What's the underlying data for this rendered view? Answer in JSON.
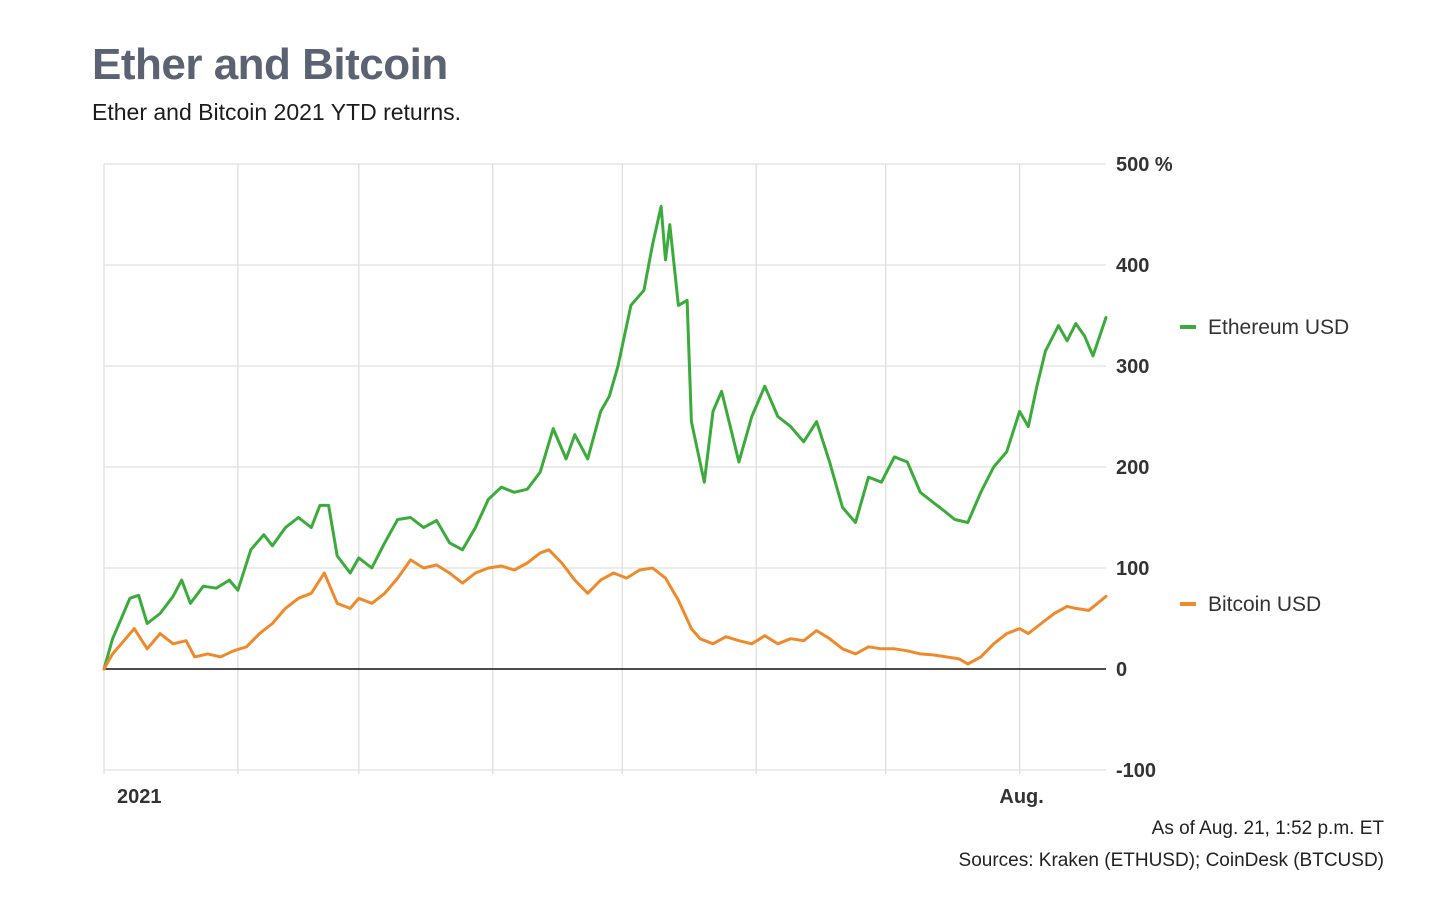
{
  "header": {
    "title": "Ether and Bitcoin",
    "subtitle": "Ether and Bitcoin 2021 YTD returns."
  },
  "footer": {
    "as_of": "As of Aug. 21, 1:52 p.m. ET",
    "sources": "Sources: Kraken (ETHUSD); CoinDesk (BTCUSD)"
  },
  "chart_data": {
    "type": "line",
    "ylim": [
      -100,
      500
    ],
    "yticks": [
      500,
      400,
      300,
      200,
      100,
      0,
      -100
    ],
    "ytick_labels": [
      "500 %",
      "400",
      "300",
      "200",
      "100",
      "0",
      "-100"
    ],
    "xlim": [
      "2021-01-01",
      "2021-08-21"
    ],
    "xtick_labels": [
      {
        "date": "2021-01-01",
        "label": "2021"
      },
      {
        "date": "2021-08-01",
        "label": "Aug."
      }
    ],
    "grid": true,
    "legend_placement": "right, next to each series",
    "series": [
      {
        "name": "Ethereum USD",
        "color": "#3bab3b",
        "points": [
          [
            "2021-01-01",
            0
          ],
          [
            "2021-01-03",
            30
          ],
          [
            "2021-01-05",
            50
          ],
          [
            "2021-01-07",
            70
          ],
          [
            "2021-01-09",
            73
          ],
          [
            "2021-01-11",
            45
          ],
          [
            "2021-01-14",
            55
          ],
          [
            "2021-01-17",
            72
          ],
          [
            "2021-01-19",
            88
          ],
          [
            "2021-01-21",
            65
          ],
          [
            "2021-01-24",
            82
          ],
          [
            "2021-01-27",
            80
          ],
          [
            "2021-01-30",
            88
          ],
          [
            "2021-02-01",
            78
          ],
          [
            "2021-02-04",
            118
          ],
          [
            "2021-02-07",
            133
          ],
          [
            "2021-02-09",
            122
          ],
          [
            "2021-02-12",
            140
          ],
          [
            "2021-02-15",
            150
          ],
          [
            "2021-02-18",
            140
          ],
          [
            "2021-02-20",
            162
          ],
          [
            "2021-02-22",
            162
          ],
          [
            "2021-02-24",
            112
          ],
          [
            "2021-02-27",
            95
          ],
          [
            "2021-03-01",
            110
          ],
          [
            "2021-03-04",
            100
          ],
          [
            "2021-03-07",
            125
          ],
          [
            "2021-03-10",
            148
          ],
          [
            "2021-03-13",
            150
          ],
          [
            "2021-03-16",
            140
          ],
          [
            "2021-03-19",
            147
          ],
          [
            "2021-03-22",
            125
          ],
          [
            "2021-03-25",
            118
          ],
          [
            "2021-03-28",
            140
          ],
          [
            "2021-03-31",
            168
          ],
          [
            "2021-04-03",
            180
          ],
          [
            "2021-04-06",
            175
          ],
          [
            "2021-04-09",
            178
          ],
          [
            "2021-04-12",
            195
          ],
          [
            "2021-04-15",
            238
          ],
          [
            "2021-04-18",
            208
          ],
          [
            "2021-04-20",
            232
          ],
          [
            "2021-04-23",
            208
          ],
          [
            "2021-04-26",
            255
          ],
          [
            "2021-04-28",
            270
          ],
          [
            "2021-04-30",
            300
          ],
          [
            "2021-05-03",
            360
          ],
          [
            "2021-05-06",
            375
          ],
          [
            "2021-05-08",
            420
          ],
          [
            "2021-05-10",
            458
          ],
          [
            "2021-05-11",
            405
          ],
          [
            "2021-05-12",
            440
          ],
          [
            "2021-05-14",
            360
          ],
          [
            "2021-05-16",
            365
          ],
          [
            "2021-05-17",
            245
          ],
          [
            "2021-05-19",
            205
          ],
          [
            "2021-05-20",
            185
          ],
          [
            "2021-05-22",
            255
          ],
          [
            "2021-05-24",
            275
          ],
          [
            "2021-05-26",
            240
          ],
          [
            "2021-05-28",
            205
          ],
          [
            "2021-05-31",
            250
          ],
          [
            "2021-06-03",
            280
          ],
          [
            "2021-06-06",
            250
          ],
          [
            "2021-06-09",
            240
          ],
          [
            "2021-06-12",
            225
          ],
          [
            "2021-06-15",
            245
          ],
          [
            "2021-06-18",
            205
          ],
          [
            "2021-06-21",
            160
          ],
          [
            "2021-06-24",
            145
          ],
          [
            "2021-06-27",
            190
          ],
          [
            "2021-06-30",
            185
          ],
          [
            "2021-07-03",
            210
          ],
          [
            "2021-07-06",
            205
          ],
          [
            "2021-07-09",
            175
          ],
          [
            "2021-07-12",
            165
          ],
          [
            "2021-07-15",
            155
          ],
          [
            "2021-07-17",
            148
          ],
          [
            "2021-07-20",
            145
          ],
          [
            "2021-07-23",
            175
          ],
          [
            "2021-07-26",
            200
          ],
          [
            "2021-07-29",
            215
          ],
          [
            "2021-08-01",
            255
          ],
          [
            "2021-08-03",
            240
          ],
          [
            "2021-08-05",
            280
          ],
          [
            "2021-08-07",
            315
          ],
          [
            "2021-08-10",
            340
          ],
          [
            "2021-08-12",
            325
          ],
          [
            "2021-08-14",
            342
          ],
          [
            "2021-08-16",
            330
          ],
          [
            "2021-08-18",
            310
          ],
          [
            "2021-08-21",
            348
          ]
        ]
      },
      {
        "name": "Bitcoin USD",
        "color": "#ee8a2a",
        "points": [
          [
            "2021-01-01",
            0
          ],
          [
            "2021-01-03",
            15
          ],
          [
            "2021-01-05",
            25
          ],
          [
            "2021-01-08",
            40
          ],
          [
            "2021-01-11",
            20
          ],
          [
            "2021-01-14",
            35
          ],
          [
            "2021-01-17",
            25
          ],
          [
            "2021-01-20",
            28
          ],
          [
            "2021-01-22",
            12
          ],
          [
            "2021-01-25",
            15
          ],
          [
            "2021-01-28",
            12
          ],
          [
            "2021-01-31",
            18
          ],
          [
            "2021-02-03",
            22
          ],
          [
            "2021-02-06",
            35
          ],
          [
            "2021-02-09",
            45
          ],
          [
            "2021-02-12",
            60
          ],
          [
            "2021-02-15",
            70
          ],
          [
            "2021-02-18",
            75
          ],
          [
            "2021-02-21",
            95
          ],
          [
            "2021-02-24",
            65
          ],
          [
            "2021-02-27",
            60
          ],
          [
            "2021-03-01",
            70
          ],
          [
            "2021-03-04",
            65
          ],
          [
            "2021-03-07",
            75
          ],
          [
            "2021-03-10",
            90
          ],
          [
            "2021-03-13",
            108
          ],
          [
            "2021-03-16",
            100
          ],
          [
            "2021-03-19",
            103
          ],
          [
            "2021-03-22",
            95
          ],
          [
            "2021-03-25",
            85
          ],
          [
            "2021-03-28",
            95
          ],
          [
            "2021-03-31",
            100
          ],
          [
            "2021-04-03",
            102
          ],
          [
            "2021-04-06",
            98
          ],
          [
            "2021-04-09",
            105
          ],
          [
            "2021-04-12",
            115
          ],
          [
            "2021-04-14",
            118
          ],
          [
            "2021-04-17",
            105
          ],
          [
            "2021-04-20",
            88
          ],
          [
            "2021-04-23",
            75
          ],
          [
            "2021-04-26",
            88
          ],
          [
            "2021-04-29",
            95
          ],
          [
            "2021-05-02",
            90
          ],
          [
            "2021-05-05",
            98
          ],
          [
            "2021-05-08",
            100
          ],
          [
            "2021-05-11",
            90
          ],
          [
            "2021-05-14",
            68
          ],
          [
            "2021-05-17",
            40
          ],
          [
            "2021-05-19",
            30
          ],
          [
            "2021-05-22",
            25
          ],
          [
            "2021-05-25",
            32
          ],
          [
            "2021-05-28",
            28
          ],
          [
            "2021-05-31",
            25
          ],
          [
            "2021-06-03",
            33
          ],
          [
            "2021-06-06",
            25
          ],
          [
            "2021-06-09",
            30
          ],
          [
            "2021-06-12",
            28
          ],
          [
            "2021-06-15",
            38
          ],
          [
            "2021-06-18",
            30
          ],
          [
            "2021-06-21",
            20
          ],
          [
            "2021-06-24",
            15
          ],
          [
            "2021-06-27",
            22
          ],
          [
            "2021-06-30",
            20
          ],
          [
            "2021-07-03",
            20
          ],
          [
            "2021-07-06",
            18
          ],
          [
            "2021-07-09",
            15
          ],
          [
            "2021-07-12",
            14
          ],
          [
            "2021-07-15",
            12
          ],
          [
            "2021-07-18",
            10
          ],
          [
            "2021-07-20",
            5
          ],
          [
            "2021-07-23",
            12
          ],
          [
            "2021-07-26",
            25
          ],
          [
            "2021-07-29",
            35
          ],
          [
            "2021-08-01",
            40
          ],
          [
            "2021-08-03",
            35
          ],
          [
            "2021-08-06",
            45
          ],
          [
            "2021-08-09",
            55
          ],
          [
            "2021-08-12",
            62
          ],
          [
            "2021-08-14",
            60
          ],
          [
            "2021-08-17",
            58
          ],
          [
            "2021-08-19",
            65
          ],
          [
            "2021-08-21",
            72
          ]
        ]
      }
    ]
  }
}
